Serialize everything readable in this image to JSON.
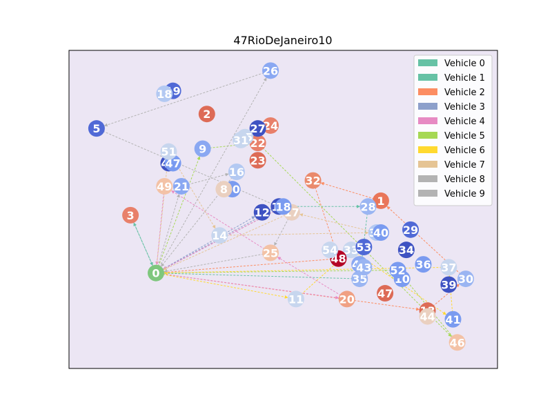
{
  "chart_data": {
    "type": "scatter",
    "title": "47RioDeJaneiro10",
    "xlabel": "",
    "ylabel": "",
    "axes_visible": false,
    "grid": false,
    "legend_position": "top-right",
    "background_color": "#ece6f4",
    "depot": {
      "label": "0",
      "x": 0.2,
      "y": 0.33,
      "color": "#7ec77d"
    },
    "nodes": [
      {
        "label": "1",
        "x": 0.73,
        "y": 0.58,
        "color": "#e9765a"
      },
      {
        "label": "2",
        "x": 0.32,
        "y": 0.88,
        "color": "#dd6b56"
      },
      {
        "label": "3",
        "x": 0.14,
        "y": 0.53,
        "color": "#e8806a"
      },
      {
        "label": "5",
        "x": 0.06,
        "y": 0.83,
        "color": "#5069d6"
      },
      {
        "label": "9",
        "x": 0.31,
        "y": 0.76,
        "color": "#8aa8f2"
      },
      {
        "label": "10",
        "x": 0.78,
        "y": 0.31,
        "color": "#7a9bf0"
      },
      {
        "label": "11",
        "x": 0.53,
        "y": 0.24,
        "color": "#c7d6ee"
      },
      {
        "label": "12",
        "x": 0.45,
        "y": 0.54,
        "color": "#3e52c2"
      },
      {
        "label": "13",
        "x": 0.84,
        "y": 0.2,
        "color": "#dd6b56"
      },
      {
        "label": "14",
        "x": 0.35,
        "y": 0.46,
        "color": "#c7d6ee"
      },
      {
        "label": "15",
        "x": 0.49,
        "y": 0.56,
        "color": "#3e52c2"
      },
      {
        "label": "16",
        "x": 0.39,
        "y": 0.68,
        "color": "#b3c9f2"
      },
      {
        "label": "17",
        "x": 0.52,
        "y": 0.54,
        "color": "#ead0c0"
      },
      {
        "label": "18",
        "x": 0.5,
        "y": 0.56,
        "color": "#7a9bf0"
      },
      {
        "label": "19",
        "x": 0.24,
        "y": 0.96,
        "color": "#5069d6"
      },
      {
        "label": "18",
        "x": 0.22,
        "y": 0.95,
        "color": "#b3c9f2"
      },
      {
        "label": "20",
        "x": 0.65,
        "y": 0.24,
        "color": "#f0a083"
      },
      {
        "label": "21",
        "x": 0.26,
        "y": 0.63,
        "color": "#8aa8f2"
      },
      {
        "label": "22",
        "x": 0.44,
        "y": 0.78,
        "color": "#e8806a"
      },
      {
        "label": "23",
        "x": 0.44,
        "y": 0.72,
        "color": "#dd6b56"
      },
      {
        "label": "24",
        "x": 0.47,
        "y": 0.84,
        "color": "#e8806a"
      },
      {
        "label": "25",
        "x": 0.47,
        "y": 0.4,
        "color": "#f3c2a6"
      },
      {
        "label": "26",
        "x": 0.47,
        "y": 1.03,
        "color": "#8aa8f2"
      },
      {
        "label": "27",
        "x": 0.44,
        "y": 0.83,
        "color": "#3e52c2"
      },
      {
        "label": "28",
        "x": 0.7,
        "y": 0.56,
        "color": "#9ab5f2"
      },
      {
        "label": "29",
        "x": 0.8,
        "y": 0.48,
        "color": "#5069d6"
      },
      {
        "label": "30",
        "x": 0.93,
        "y": 0.31,
        "color": "#9ab5f2"
      },
      {
        "label": "32",
        "x": 0.57,
        "y": 0.65,
        "color": "#ea8a6c"
      },
      {
        "label": "33",
        "x": 0.66,
        "y": 0.41,
        "color": "#c7d6ee"
      },
      {
        "label": "34",
        "x": 0.79,
        "y": 0.41,
        "color": "#3e52c2"
      },
      {
        "label": "35",
        "x": 0.68,
        "y": 0.31,
        "color": "#9ab5f2"
      },
      {
        "label": "36",
        "x": 0.83,
        "y": 0.36,
        "color": "#7a9bf0"
      },
      {
        "label": "37",
        "x": 0.89,
        "y": 0.35,
        "color": "#c7d6ee"
      },
      {
        "label": "38",
        "x": 0.72,
        "y": 0.47,
        "color": "#b3c9f2"
      },
      {
        "label": "39",
        "x": 0.89,
        "y": 0.29,
        "color": "#3e52c2"
      },
      {
        "label": "40",
        "x": 0.73,
        "y": 0.47,
        "color": "#7a9bf0"
      },
      {
        "label": "41",
        "x": 0.9,
        "y": 0.17,
        "color": "#7a9bf0"
      },
      {
        "label": "42",
        "x": 0.68,
        "y": 0.36,
        "color": "#8aa8f2"
      },
      {
        "label": "43",
        "x": 0.69,
        "y": 0.35,
        "color": "#9ab5f2"
      },
      {
        "label": "44",
        "x": 0.84,
        "y": 0.18,
        "color": "#ead0c0"
      },
      {
        "label": "45",
        "x": 0.41,
        "y": 0.8,
        "color": "#c7d6ee"
      },
      {
        "label": "46",
        "x": 0.91,
        "y": 0.09,
        "color": "#f3c2a6"
      },
      {
        "label": "47",
        "x": 0.74,
        "y": 0.26,
        "color": "#dd6b56"
      },
      {
        "label": "47",
        "x": 0.23,
        "y": 0.71,
        "color": "#3e52c2"
      },
      {
        "label": "47",
        "x": 0.24,
        "y": 0.71,
        "color": "#7a9bf0"
      },
      {
        "label": "48",
        "x": 0.63,
        "y": 0.38,
        "color": "#b40426"
      },
      {
        "label": "49",
        "x": 0.22,
        "y": 0.63,
        "color": "#f3c2a6"
      },
      {
        "label": "50",
        "x": 0.38,
        "y": 0.62,
        "color": "#7a9bf0"
      },
      {
        "label": "51",
        "x": 0.23,
        "y": 0.75,
        "color": "#c7d6ee"
      },
      {
        "label": "52",
        "x": 0.77,
        "y": 0.34,
        "color": "#7a9bf0"
      },
      {
        "label": "53",
        "x": 0.69,
        "y": 0.42,
        "color": "#5069d6"
      },
      {
        "label": "54",
        "x": 0.61,
        "y": 0.41,
        "color": "#c7d6ee"
      },
      {
        "label": "8",
        "x": 0.36,
        "y": 0.62,
        "color": "#ead0c0"
      },
      {
        "label": "31",
        "x": 0.4,
        "y": 0.79,
        "color": "#c7d6ee"
      }
    ],
    "series": [
      {
        "name": "Vehicle 0",
        "color": "#66c2a5",
        "route": [
          "0",
          "3",
          "0"
        ]
      },
      {
        "name": "Vehicle 1",
        "color": "#66c2a5",
        "route": [
          "0",
          "18",
          "28",
          "35",
          "0"
        ]
      },
      {
        "name": "Vehicle 2",
        "color": "#fc8d62",
        "route": [
          "0",
          "13",
          "30",
          "1",
          "32",
          "48",
          "0"
        ]
      },
      {
        "name": "Vehicle 3",
        "color": "#8da0cb",
        "route": [
          "0",
          "12",
          "15",
          "0"
        ]
      },
      {
        "name": "Vehicle 4",
        "color": "#e78ac3",
        "route": [
          "0",
          "18",
          "0",
          "20",
          "25",
          "49",
          "0"
        ]
      },
      {
        "name": "Vehicle 5",
        "color": "#a6d854",
        "route": [
          "0",
          "9",
          "22",
          "46",
          "52",
          "0"
        ]
      },
      {
        "name": "Vehicle 6",
        "color": "#ffd92f",
        "route": [
          "0",
          "11",
          "33",
          "41",
          "37",
          "0"
        ]
      },
      {
        "name": "Vehicle 7",
        "color": "#e5c494",
        "route": [
          "0",
          "51",
          "14",
          "38",
          "17",
          "0"
        ]
      },
      {
        "name": "Vehicle 8",
        "color": "#b3b3b3",
        "route": [
          "0",
          "26",
          "5",
          "17",
          "25",
          "0"
        ]
      },
      {
        "name": "Vehicle 9",
        "color": "#b3b3b3",
        "route": [
          "0",
          "21",
          "16",
          "0"
        ]
      }
    ]
  }
}
